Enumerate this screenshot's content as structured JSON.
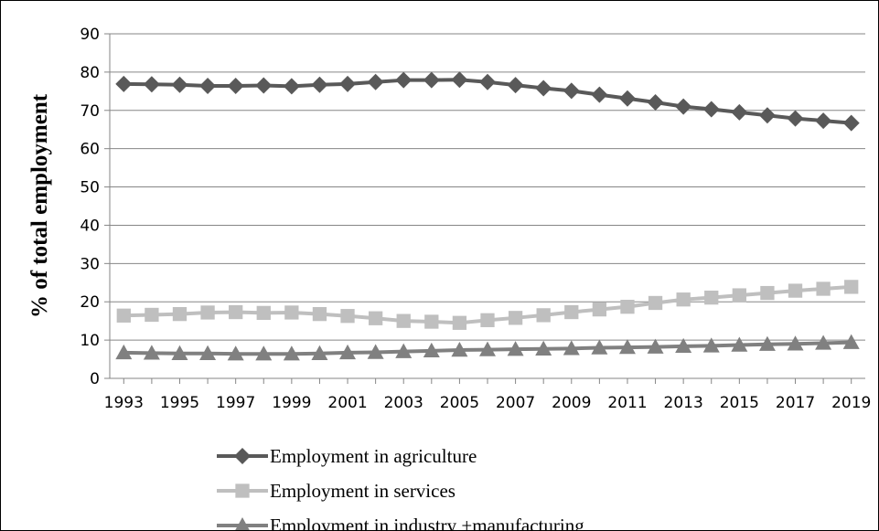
{
  "chart_data": {
    "type": "line",
    "title": "",
    "xlabel": "",
    "ylabel": "% of total employment",
    "ylim": [
      0,
      90
    ],
    "yticks": [
      0,
      10,
      20,
      30,
      40,
      50,
      60,
      70,
      80,
      90
    ],
    "x": [
      1993,
      1994,
      1995,
      1996,
      1997,
      1998,
      1999,
      2000,
      2001,
      2002,
      2003,
      2004,
      2005,
      2006,
      2007,
      2008,
      2009,
      2010,
      2011,
      2012,
      2013,
      2014,
      2015,
      2016,
      2017,
      2018,
      2019
    ],
    "xtick_labels": [
      "1993",
      "1995",
      "1997",
      "1999",
      "2001",
      "2003",
      "2005",
      "2007",
      "2009",
      "2011",
      "2013",
      "2015",
      "2017",
      "2019"
    ],
    "grid": "horizontal",
    "legend_position": "bottom",
    "series": [
      {
        "name": "Employment in agriculture",
        "color": "#595959",
        "marker": "diamond",
        "values": [
          76.9,
          76.8,
          76.7,
          76.4,
          76.4,
          76.5,
          76.3,
          76.7,
          76.9,
          77.4,
          77.9,
          77.9,
          78.0,
          77.4,
          76.6,
          75.8,
          75.1,
          74.1,
          73.1,
          72.1,
          71.0,
          70.3,
          69.5,
          68.7,
          67.9,
          67.3,
          66.7
        ]
      },
      {
        "name": "Employment in services",
        "color": "#BFBFBF",
        "marker": "square",
        "values": [
          16.4,
          16.6,
          16.8,
          17.2,
          17.3,
          17.1,
          17.2,
          16.8,
          16.3,
          15.7,
          15.0,
          14.8,
          14.5,
          15.2,
          15.8,
          16.5,
          17.3,
          18.0,
          18.7,
          19.7,
          20.6,
          21.1,
          21.7,
          22.3,
          22.9,
          23.4,
          23.9
        ]
      },
      {
        "name": "Employment in industry +manufacturing",
        "color": "#808080",
        "marker": "triangle",
        "values": [
          6.7,
          6.6,
          6.5,
          6.5,
          6.4,
          6.4,
          6.4,
          6.5,
          6.7,
          6.8,
          7.0,
          7.2,
          7.4,
          7.5,
          7.6,
          7.7,
          7.8,
          8.0,
          8.1,
          8.2,
          8.4,
          8.5,
          8.7,
          8.9,
          9.0,
          9.2,
          9.4
        ]
      }
    ]
  }
}
